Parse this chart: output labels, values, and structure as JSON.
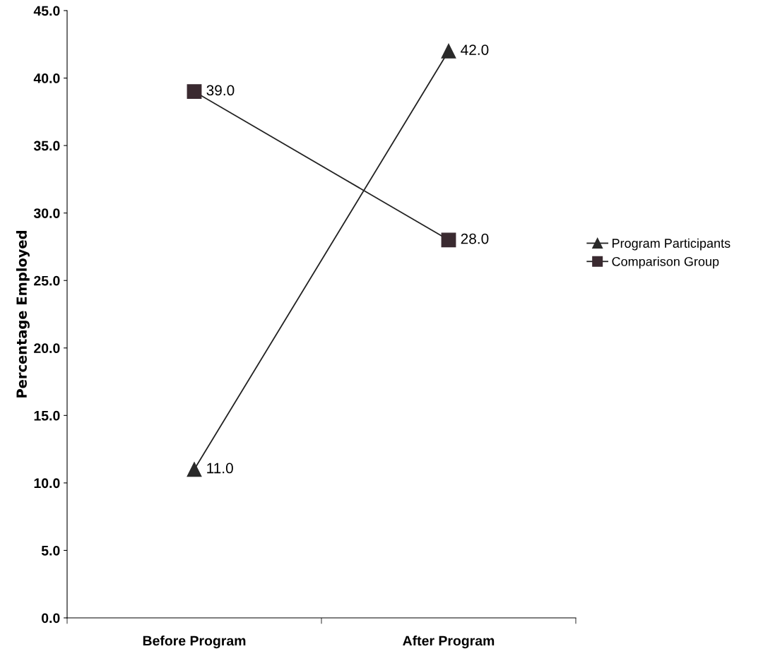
{
  "chart_data": {
    "type": "line",
    "ylabel": "Percentage Employed",
    "categories": [
      "Before Program",
      "After Program"
    ],
    "series": [
      {
        "name": "Program Participants",
        "color": "#2a2a2a",
        "marker": "triangle",
        "values": [
          11,
          42
        ],
        "value_labels": [
          "11.0",
          "42.0"
        ]
      },
      {
        "name": "Comparison Group",
        "color": "#3a2a30",
        "marker": "square",
        "values": [
          39,
          28
        ],
        "value_labels": [
          "39.0",
          "28.0"
        ]
      }
    ],
    "ylim": [
      0,
      45
    ],
    "yticks": [
      {
        "value": 0,
        "label": "0.0"
      },
      {
        "value": 5,
        "label": "5.0"
      },
      {
        "value": 10,
        "label": "10.0"
      },
      {
        "value": 15,
        "label": "15.0"
      },
      {
        "value": 20,
        "label": "20.0"
      },
      {
        "value": 25,
        "label": "25.0"
      },
      {
        "value": 30,
        "label": "30.0"
      },
      {
        "value": 35,
        "label": "35.0"
      },
      {
        "value": 40,
        "label": "40.0"
      },
      {
        "value": 45,
        "label": "45.0"
      }
    ],
    "grid": false,
    "legend": "right",
    "line_style": "solid"
  }
}
